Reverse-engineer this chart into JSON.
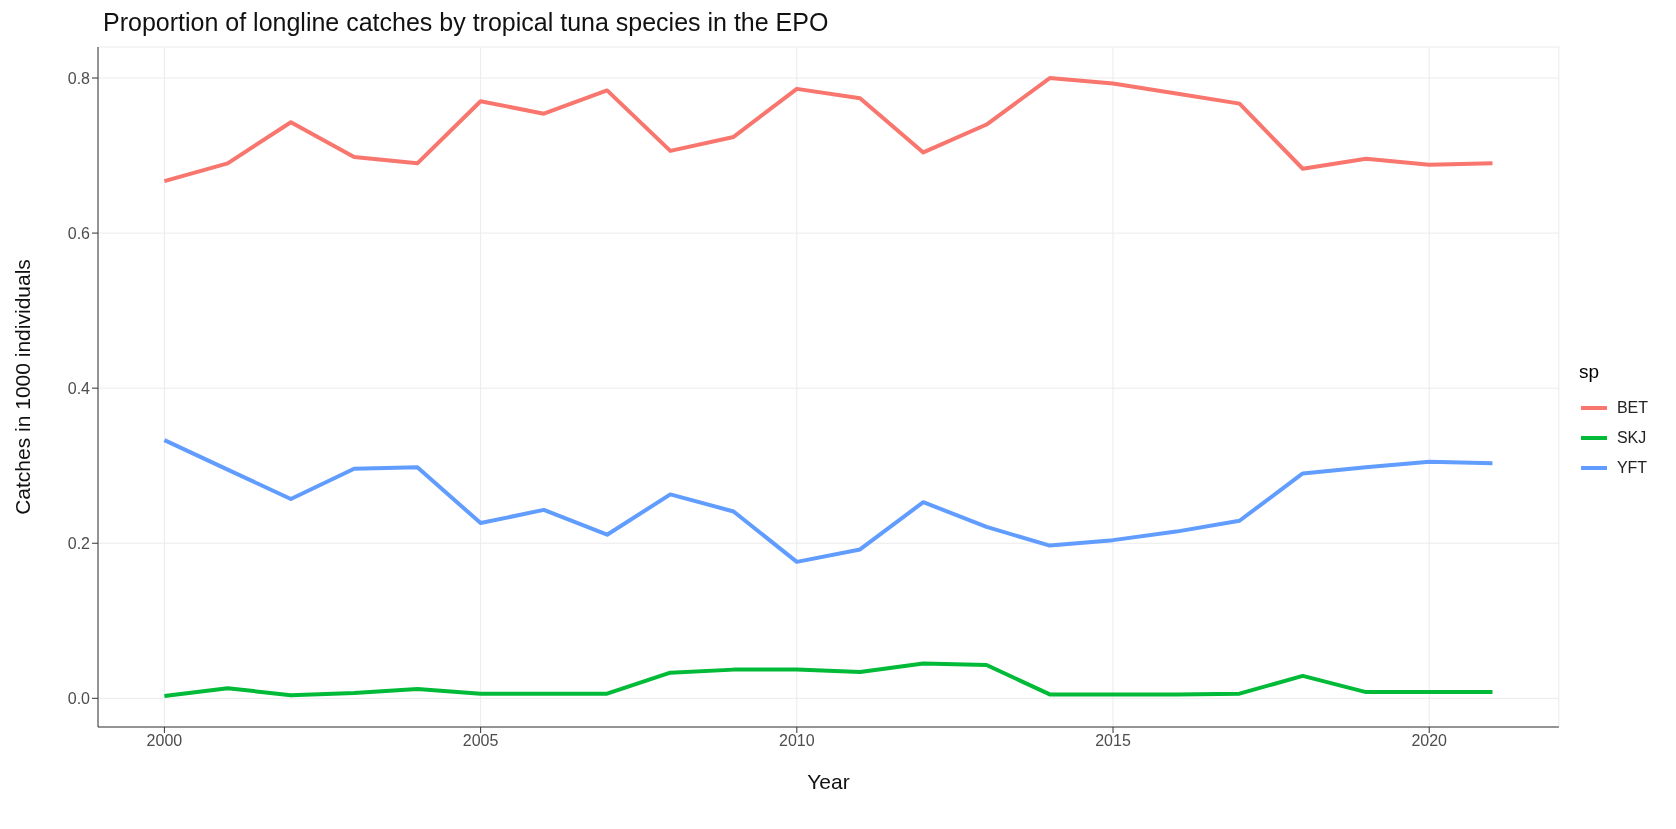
{
  "chart_data": {
    "type": "line",
    "title": "Proportion of longline catches by tropical tuna species in the EPO",
    "xlabel": "Year",
    "ylabel": "Catches in 1000 individuals",
    "legend_title": "sp",
    "x": [
      2000,
      2001,
      2002,
      2003,
      2004,
      2005,
      2006,
      2007,
      2008,
      2009,
      2010,
      2011,
      2012,
      2013,
      2014,
      2015,
      2016,
      2017,
      2018,
      2019,
      2020,
      2021
    ],
    "series": [
      {
        "name": "BET",
        "color": "#f8766d",
        "values": [
          0.667,
          0.69,
          0.743,
          0.698,
          0.69,
          0.77,
          0.754,
          0.784,
          0.706,
          0.724,
          0.786,
          0.774,
          0.704,
          0.74,
          0.8,
          0.793,
          0.78,
          0.767,
          0.683,
          0.696,
          0.688,
          0.69
        ]
      },
      {
        "name": "SKJ",
        "color": "#00ba38",
        "values": [
          0.003,
          0.013,
          0.004,
          0.007,
          0.012,
          0.006,
          0.006,
          0.006,
          0.033,
          0.037,
          0.037,
          0.034,
          0.045,
          0.043,
          0.005,
          0.005,
          0.005,
          0.006,
          0.029,
          0.008,
          0.008,
          0.008
        ]
      },
      {
        "name": "YFT",
        "color": "#619cff",
        "values": [
          0.333,
          0.295,
          0.257,
          0.296,
          0.298,
          0.226,
          0.243,
          0.211,
          0.263,
          0.241,
          0.176,
          0.192,
          0.253,
          0.221,
          0.197,
          0.204,
          0.215,
          0.229,
          0.29,
          0.298,
          0.305,
          0.303
        ]
      }
    ],
    "xlim": [
      1998.95,
      2022.05
    ],
    "xticks": [
      2000,
      2005,
      2010,
      2015,
      2020
    ],
    "ylim": [
      -0.037,
      0.84
    ],
    "yticks": [
      {
        "value": 0,
        "label": "0.0"
      },
      {
        "value": 0.2,
        "label": "0.2"
      },
      {
        "value": 0.4,
        "label": "0.4"
      },
      {
        "value": 0.6,
        "label": "0.6"
      },
      {
        "value": 0.8,
        "label": "0.8"
      }
    ],
    "grid": true,
    "legend": "right",
    "marker": "none",
    "line_style": "solid"
  }
}
